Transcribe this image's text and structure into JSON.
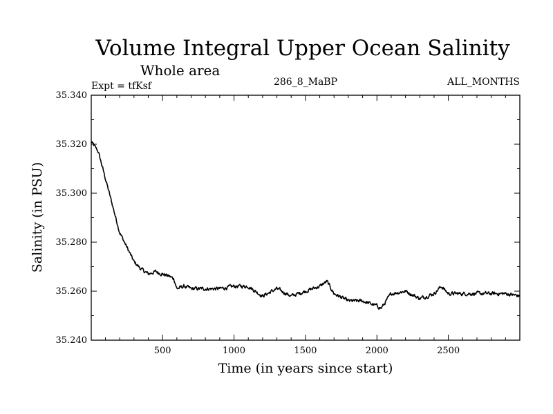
{
  "chart_data": {
    "type": "line",
    "title": "Volume Integral Upper Ocean Salinity",
    "subtitle": "Whole area",
    "experiment": "Expt = tfKsf",
    "run_id": "286_8_MaBP",
    "period": "ALL_MONTHS",
    "xlabel": "Time (in years since start)",
    "ylabel": "Salinity (in PSU)",
    "xlim": [
      1,
      3000
    ],
    "ylim": [
      35.24,
      35.34
    ],
    "grid": false,
    "x_ticks": [
      500,
      1000,
      1500,
      2000,
      2500
    ],
    "x_tick_labels": [
      "500",
      "1000",
      "1500",
      "2000",
      "2500"
    ],
    "y_ticks": [
      35.24,
      35.26,
      35.28,
      35.3,
      35.32,
      35.34
    ],
    "y_tick_labels": [
      "35.240",
      "35.260",
      "35.280",
      "35.300",
      "35.320",
      "35.340"
    ],
    "series": [
      {
        "name": "Salinity",
        "color": "#000000",
        "x": [
          1,
          50,
          100,
          150,
          200,
          250,
          300,
          350,
          400,
          450,
          500,
          550,
          580,
          600,
          650,
          700,
          800,
          900,
          1000,
          1100,
          1200,
          1300,
          1400,
          1500,
          1600,
          1650,
          1700,
          1800,
          1900,
          2000,
          2030,
          2100,
          2200,
          2300,
          2400,
          2450,
          2500,
          2600,
          2700,
          2800,
          2900,
          3000
        ],
        "values": [
          35.321,
          35.317,
          35.306,
          35.295,
          35.284,
          35.278,
          35.272,
          35.269,
          35.267,
          35.268,
          35.267,
          35.266,
          35.265,
          35.261,
          35.262,
          35.261,
          35.261,
          35.261,
          35.262,
          35.262,
          35.258,
          35.261,
          35.258,
          35.26,
          35.262,
          35.264,
          35.259,
          35.256,
          35.256,
          35.254,
          35.253,
          35.259,
          35.26,
          35.257,
          35.259,
          35.262,
          35.259,
          35.259,
          35.259,
          35.259,
          35.259,
          35.258
        ]
      }
    ]
  }
}
